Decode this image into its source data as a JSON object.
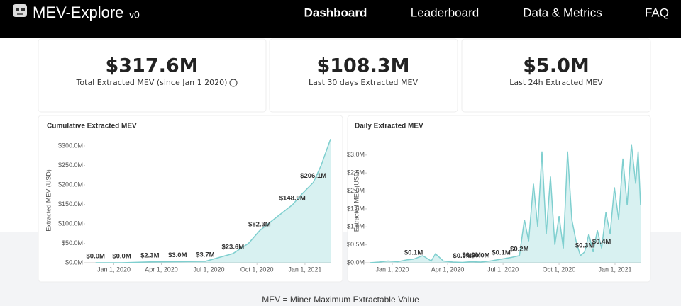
{
  "nav": {
    "brand": "MEV-Explore",
    "version": "v0",
    "links": [
      "Dashboard",
      "Leaderboard",
      "Data & Metrics",
      "FAQ"
    ]
  },
  "stats": [
    {
      "value": "$317.6M",
      "label": "Total Extracted MEV (since Jan 1 2020)"
    },
    {
      "value": "$108.3M",
      "label": "Last 30 days Extracted MEV"
    },
    {
      "value": "$5.0M",
      "label": "Last 24h Extracted MEV"
    }
  ],
  "chart_data": [
    {
      "type": "area",
      "title": "Cumulative Extracted MEV",
      "y_label": "Extracted MEV (USD)",
      "color": "#7fcfcf",
      "x": [
        "2019-11-27",
        "2020-01-16",
        "2020-03-10",
        "2020-05-02",
        "2020-06-24",
        "2020-08-16",
        "2020-09-15",
        "2020-10-06",
        "2020-11-01",
        "2020-12-08",
        "2020-12-25",
        "2021-01-17",
        "2021-02-01",
        "2021-02-19"
      ],
      "values": [
        0,
        0,
        2.3,
        3.0,
        3.7,
        23.6,
        50,
        82.3,
        110,
        148.9,
        175,
        206.1,
        250,
        317.6
      ],
      "value_labels": [
        "$0.0M",
        "$0.0M",
        "$2.3M",
        "$3.0M",
        "$3.7M",
        "$23.6M",
        null,
        "$82.3M",
        null,
        "$148.9M",
        null,
        "$206.1M",
        null,
        null
      ],
      "xlim": [
        "2019-11-07",
        "2021-02-19"
      ],
      "xticks": [
        {
          "value": "2020-01-01",
          "label": "Jan 1, 2020"
        },
        {
          "value": "2020-04-01",
          "label": "Apr 1, 2020"
        },
        {
          "value": "2020-07-01",
          "label": "Jul 1, 2020"
        },
        {
          "value": "2020-10-01",
          "label": "Oct 1, 2020"
        },
        {
          "value": "2021-01-01",
          "label": "Jan 1, 2021"
        }
      ],
      "ylim": [
        0,
        320
      ],
      "yticks": [
        {
          "value": 0,
          "label": "$0.0M"
        },
        {
          "value": 50,
          "label": "$50.0M"
        },
        {
          "value": 100,
          "label": "$100.0M"
        },
        {
          "value": 150,
          "label": "$150.0M"
        },
        {
          "value": 200,
          "label": "$200.0M"
        },
        {
          "value": 250,
          "label": "$250.0M"
        },
        {
          "value": 300,
          "label": "$300.0M"
        }
      ]
    },
    {
      "type": "area",
      "title": "Daily Extracted MEV",
      "y_label": "Extracted MEV (USD)",
      "color": "#7fcfcf",
      "x": [
        "2019-11-25",
        "2019-12-10",
        "2019-12-25",
        "2020-01-10",
        "2020-01-25",
        "2020-02-05",
        "2020-02-20",
        "2020-03-05",
        "2020-03-12",
        "2020-03-25",
        "2020-04-10",
        "2020-04-25",
        "2020-05-10",
        "2020-05-25",
        "2020-06-10",
        "2020-06-28",
        "2020-07-15",
        "2020-07-28",
        "2020-08-05",
        "2020-08-12",
        "2020-08-20",
        "2020-08-27",
        "2020-09-03",
        "2020-09-10",
        "2020-09-17",
        "2020-09-24",
        "2020-10-01",
        "2020-10-08",
        "2020-10-15",
        "2020-10-22",
        "2020-10-29",
        "2020-11-05",
        "2020-11-12",
        "2020-11-19",
        "2020-11-26",
        "2020-12-03",
        "2020-12-10",
        "2020-12-17",
        "2020-12-24",
        "2020-12-31",
        "2021-01-07",
        "2021-01-14",
        "2021-01-21",
        "2021-01-28",
        "2021-02-04",
        "2021-02-08",
        "2021-02-12"
      ],
      "values": [
        0,
        0.02,
        0.05,
        0.03,
        0.08,
        0.1,
        0.2,
        0.05,
        0.25,
        0.05,
        0.02,
        0.01,
        0.03,
        0.02,
        0.05,
        0.1,
        0.15,
        0.2,
        1.2,
        0.6,
        2.2,
        1.0,
        3.1,
        0.8,
        2.4,
        0.5,
        1.3,
        0.4,
        3.1,
        1.2,
        0.6,
        0.2,
        0.3,
        0.8,
        0.3,
        0.9,
        0.4,
        1.4,
        0.8,
        2.1,
        1.2,
        2.9,
        1.6,
        3.3,
        2.2,
        3.1,
        1.6
      ],
      "value_labels": [
        null,
        null,
        null,
        null,
        null,
        "$0.1M",
        null,
        null,
        null,
        null,
        null,
        "$0.0M",
        "$0.0M",
        "$0.0M",
        null,
        "$0.1M",
        null,
        "$0.2M",
        null,
        null,
        null,
        null,
        null,
        null,
        null,
        null,
        null,
        null,
        null,
        null,
        null,
        null,
        "$0.3M",
        null,
        null,
        null,
        "$0.4M",
        null,
        null,
        null,
        null,
        null,
        null,
        null,
        null,
        null,
        null
      ],
      "xlim": [
        "2019-11-20",
        "2021-02-12"
      ],
      "xticks": [
        {
          "value": "2020-01-01",
          "label": "Jan 1, 2020"
        },
        {
          "value": "2020-04-01",
          "label": "Apr 1, 2020"
        },
        {
          "value": "2020-07-01",
          "label": "Jul 1, 2020"
        },
        {
          "value": "2020-10-01",
          "label": "Oct 1, 2020"
        },
        {
          "value": "2021-01-01",
          "label": "Jan 1, 2021"
        }
      ],
      "ylim": [
        0,
        3.45
      ],
      "yticks": [
        {
          "value": 0,
          "label": "$0.0M"
        },
        {
          "value": 0.5,
          "label": "$0.5M"
        },
        {
          "value": 1.0,
          "label": "$1.0M"
        },
        {
          "value": 1.5,
          "label": "$1.5M"
        },
        {
          "value": 2.0,
          "label": "$2.0M"
        },
        {
          "value": 2.5,
          "label": "$2.5M"
        },
        {
          "value": 3.0,
          "label": "$3.0M"
        }
      ]
    }
  ],
  "footer": {
    "lead": "MEV =",
    "struck": "Miner",
    "rest": "Maximum Extractable Value"
  }
}
